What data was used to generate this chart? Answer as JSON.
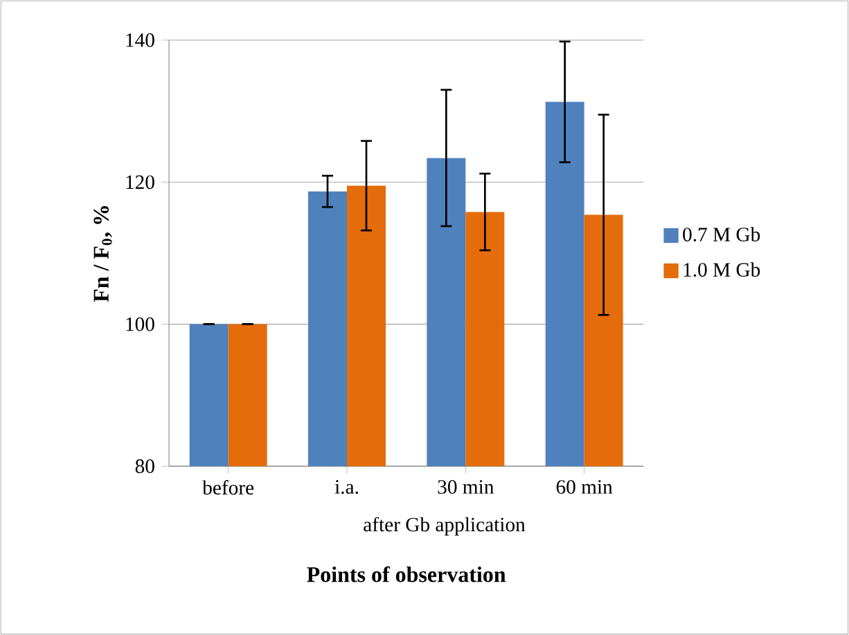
{
  "chart_data": {
    "type": "bar",
    "xlabel": "**Points of observation**",
    "ylabel": "**Fn / F$_{0}$, %**",
    "categories": [
      "before",
      "i.a.",
      "30 min",
      "60 min"
    ],
    "series": [
      {
        "name": "0.7 M Gb",
        "color": "#4f81bd",
        "values": [
          100,
          118.7,
          123.4,
          131.3
        ],
        "errors": [
          0,
          2.2,
          9.6,
          8.5
        ]
      },
      {
        "name": "1.0 M Gb",
        "color": "#e46c0a",
        "values": [
          100,
          119.5,
          115.8,
          115.4
        ],
        "errors": [
          0,
          6.3,
          5.4,
          14.1
        ]
      }
    ],
    "ylim": [
      80,
      140
    ],
    "yticks": [
      80,
      100,
      120,
      140
    ],
    "grid": "y",
    "legend": "right",
    "annotations": [
      "after  Gb application"
    ]
  }
}
